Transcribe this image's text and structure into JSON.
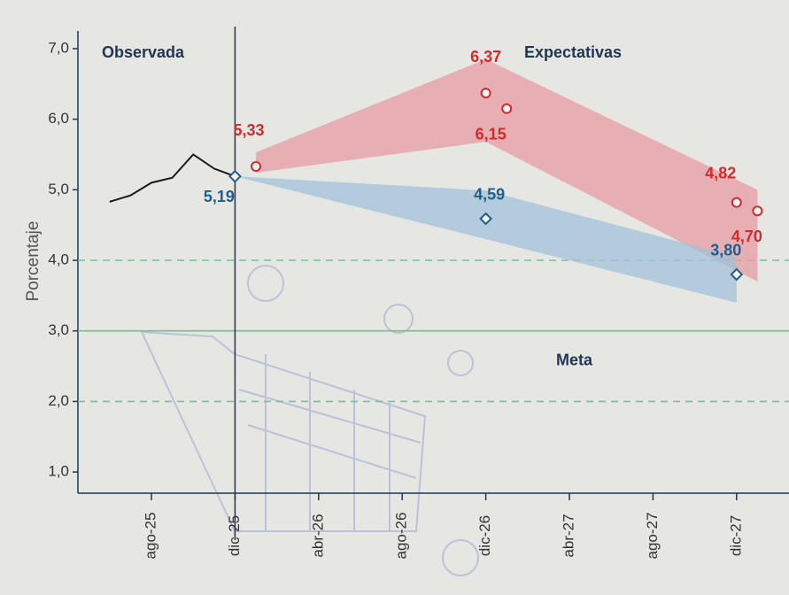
{
  "chart_data": {
    "type": "line",
    "annotations": {
      "observed": "Observada",
      "expected": "Expectativas"
    },
    "ylabel": "Porcentaje",
    "categories": [
      null,
      null,
      "ago-25",
      null,
      null,
      null,
      "dic-25",
      null,
      null,
      null,
      "abr-26",
      null,
      null,
      null,
      "ago-26",
      null,
      null,
      null,
      "dic-26",
      null,
      null,
      null,
      "abr-27",
      null,
      null,
      null,
      "ago-27",
      null,
      null,
      null,
      "dic-27",
      null
    ],
    "ylim": [
      0.7,
      7.25
    ],
    "yticks": [
      {
        "value": 1,
        "label": "1,0"
      },
      {
        "value": 2,
        "label": "2,0"
      },
      {
        "value": 3,
        "label": "3,0"
      },
      {
        "value": 4,
        "label": "4,0"
      },
      {
        "value": 5,
        "label": "5,0"
      },
      {
        "value": 6,
        "label": "6,0"
      },
      {
        "value": 7,
        "label": "7,0"
      }
    ],
    "divider_at": 6,
    "reference_lines": [
      {
        "value": 3,
        "style": "solid",
        "color": "#6cc48a",
        "label": "Meta"
      },
      {
        "value": 4,
        "style": "dashed",
        "color": "#6cc4a0"
      },
      {
        "value": 2,
        "style": "dashed",
        "color": "#6cc4a0"
      }
    ],
    "bands": [
      {
        "color": "#e79aa2",
        "upper": [
          null,
          null,
          null,
          null,
          null,
          null,
          null,
          5.53,
          null,
          null,
          null,
          null,
          null,
          null,
          null,
          null,
          null,
          null,
          6.85,
          null,
          null,
          null,
          null,
          null,
          null,
          null,
          null,
          null,
          null,
          null,
          null,
          5.0
        ],
        "lower": [
          null,
          null,
          null,
          null,
          null,
          null,
          null,
          5.24,
          null,
          null,
          null,
          null,
          null,
          null,
          null,
          null,
          null,
          null,
          5.68,
          null,
          null,
          null,
          null,
          null,
          null,
          null,
          null,
          null,
          null,
          null,
          null,
          3.7
        ]
      },
      {
        "color": "#9fc0da",
        "upper": [
          null,
          null,
          null,
          null,
          null,
          null,
          5.19,
          null,
          null,
          null,
          null,
          null,
          null,
          null,
          null,
          null,
          null,
          null,
          4.99,
          null,
          null,
          null,
          null,
          null,
          null,
          null,
          null,
          null,
          null,
          null,
          4.05,
          null
        ],
        "lower": [
          null,
          null,
          null,
          null,
          null,
          null,
          5.19,
          null,
          null,
          null,
          null,
          null,
          null,
          null,
          null,
          null,
          null,
          null,
          4.3,
          null,
          null,
          null,
          null,
          null,
          null,
          null,
          null,
          null,
          null,
          null,
          3.4,
          null
        ]
      }
    ],
    "series": [
      {
        "color": "#1a1a1a",
        "marker": "none",
        "values": [
          4.83,
          4.92,
          5.1,
          5.17,
          5.5,
          5.3,
          5.19,
          null,
          null,
          null,
          null,
          null,
          null,
          null,
          null,
          null,
          null,
          null,
          null,
          null,
          null,
          null,
          null,
          null,
          null,
          null,
          null,
          null,
          null,
          null,
          null,
          null
        ]
      },
      {
        "color": "#1f5f8b",
        "marker": "diamond",
        "values": [
          null,
          null,
          null,
          null,
          null,
          null,
          5.19,
          null,
          null,
          null,
          null,
          null,
          null,
          null,
          null,
          null,
          null,
          null,
          4.59,
          null,
          null,
          null,
          null,
          null,
          null,
          null,
          null,
          null,
          null,
          null,
          3.8,
          null
        ],
        "value_labels": [
          null,
          null,
          null,
          null,
          null,
          null,
          "5,19",
          null,
          null,
          null,
          null,
          null,
          null,
          null,
          null,
          null,
          null,
          null,
          "4,59",
          null,
          null,
          null,
          null,
          null,
          null,
          null,
          null,
          null,
          null,
          null,
          "3,80",
          null
        ]
      },
      {
        "color": "#d12a2f",
        "marker": "circle",
        "values": [
          null,
          null,
          null,
          null,
          null,
          null,
          null,
          5.33,
          null,
          null,
          null,
          null,
          null,
          null,
          null,
          null,
          null,
          null,
          6.37,
          6.15,
          null,
          null,
          null,
          null,
          null,
          null,
          null,
          null,
          null,
          null,
          4.82,
          4.7
        ],
        "value_labels": [
          null,
          null,
          null,
          null,
          null,
          null,
          null,
          "5,33",
          null,
          null,
          null,
          null,
          null,
          null,
          null,
          null,
          null,
          null,
          "6,37",
          "6,15",
          null,
          null,
          null,
          null,
          null,
          null,
          null,
          null,
          null,
          null,
          "4,82",
          "4,70"
        ]
      }
    ]
  }
}
